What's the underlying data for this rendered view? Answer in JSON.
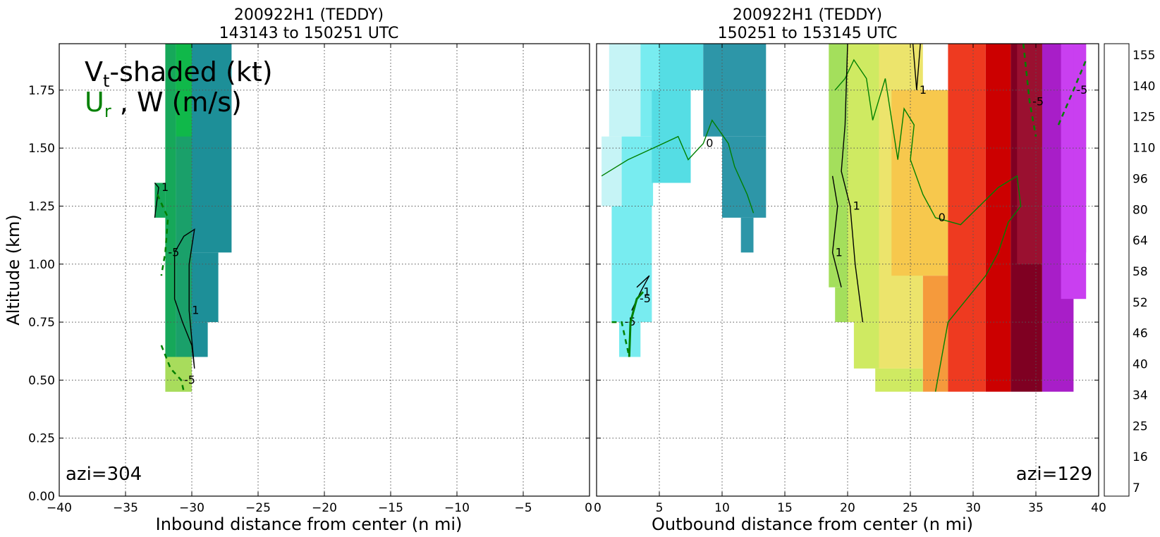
{
  "chart_data": [
    {
      "type": "heatmap",
      "title_line1": "200922H1 (TEDDY)",
      "title_line2": "143143 to 150251 UTC",
      "xlabel": "Inbound distance from center (n mi)",
      "ylabel": "Altitude (km)",
      "xlim": [
        -40,
        0
      ],
      "ylim": [
        0,
        1.95
      ],
      "xticks": [
        "−40",
        "−35",
        "−30",
        "−25",
        "−20",
        "−15",
        "−10",
        "−5",
        "0"
      ],
      "xtick_values": [
        -40,
        -35,
        -30,
        -25,
        -20,
        -15,
        -10,
        -5,
        0
      ],
      "yticks": [
        "0.00",
        "0.25",
        "0.50",
        "0.75",
        "1.00",
        "1.25",
        "1.50",
        "1.75"
      ],
      "ytick_values": [
        0,
        0.25,
        0.5,
        0.75,
        1.0,
        1.25,
        1.5,
        1.75
      ],
      "grid": true,
      "legend_main": "V",
      "legend_main_sub": "t",
      "legend_main_rest": "-shaded (kt)",
      "legend_second": "U",
      "legend_second_sub": "r",
      "legend_second_rest": " , W (m/s)",
      "legend_second_color": "#008000",
      "annotation": "azi=304",
      "shaded_regions": [
        {
          "x": [
            -32.0,
            -31.2
          ],
          "y": [
            0.6,
            1.95
          ],
          "color": "#16a85a"
        },
        {
          "x": [
            -32.8,
            -32.0
          ],
          "y": [
            1.2,
            1.35
          ],
          "color": "#16a85a"
        },
        {
          "x": [
            -31.2,
            -30.0
          ],
          "y": [
            0.6,
            1.95
          ],
          "color": "#1aa06a"
        },
        {
          "x": [
            -30.0,
            -27.0
          ],
          "y": [
            1.05,
            1.95
          ],
          "color": "#1d8f98"
        },
        {
          "x": [
            -30.0,
            -28.0
          ],
          "y": [
            0.75,
            1.05
          ],
          "color": "#1d8f98"
        },
        {
          "x": [
            -30.0,
            -28.8
          ],
          "y": [
            0.6,
            0.75
          ],
          "color": "#1d8f98"
        },
        {
          "x": [
            -31.2,
            -30.0
          ],
          "y": [
            1.55,
            1.95
          ],
          "color": "#10b84a"
        },
        {
          "x": [
            -32.0,
            -30.0
          ],
          "y": [
            0.45,
            0.6
          ],
          "color": "#a8dc5c"
        }
      ],
      "contours": [
        {
          "label": "1",
          "color": "#000000",
          "style": "solid",
          "points": [
            [
              -32.8,
              1.2
            ],
            [
              -32.5,
              1.33
            ],
            [
              -32.8,
              1.35
            ]
          ]
        },
        {
          "label": "1",
          "color": "#000000",
          "style": "solid",
          "points": [
            [
              -31.3,
              1.05
            ],
            [
              -31.3,
              0.85
            ],
            [
              -30.7,
              0.75
            ],
            [
              -30.0,
              0.65
            ],
            [
              -29.8,
              0.55
            ],
            [
              -30.2,
              0.8
            ],
            [
              -30.2,
              1.0
            ],
            [
              -29.8,
              1.15
            ],
            [
              -30.6,
              1.12
            ],
            [
              -31.3,
              1.05
            ]
          ]
        },
        {
          "label": "-5",
          "color": "#008000",
          "style": "dashed",
          "points": [
            [
              -32.6,
              1.3
            ],
            [
              -31.8,
              1.2
            ],
            [
              -32.0,
              1.05
            ],
            [
              -32.3,
              0.95
            ]
          ]
        },
        {
          "label": "-5",
          "color": "#008000",
          "style": "dashed",
          "points": [
            [
              -32.3,
              0.65
            ],
            [
              -31.6,
              0.55
            ],
            [
              -30.8,
              0.5
            ],
            [
              -30.6,
              0.45
            ]
          ]
        }
      ]
    },
    {
      "type": "heatmap",
      "title_line1": "200922H1 (TEDDY)",
      "title_line2": "150251 to 153145 UTC",
      "xlabel": "Outbound distance from center (n mi)",
      "xlim": [
        0,
        40
      ],
      "ylim": [
        0,
        1.95
      ],
      "xticks": [
        "0",
        "5",
        "10",
        "15",
        "20",
        "25",
        "30",
        "35",
        "40"
      ],
      "xtick_values": [
        0,
        5,
        10,
        15,
        20,
        25,
        30,
        35,
        40
      ],
      "grid": true,
      "annotation": "azi=129",
      "shaded_regions": [
        {
          "x": [
            0.4,
            2.0
          ],
          "y": [
            1.25,
            1.55
          ],
          "color": "#c6f4f6"
        },
        {
          "x": [
            1.0,
            3.5
          ],
          "y": [
            1.55,
            1.95
          ],
          "color": "#c6f4f6"
        },
        {
          "x": [
            2.0,
            4.5
          ],
          "y": [
            1.25,
            1.55
          ],
          "color": "#78ecf0"
        },
        {
          "x": [
            3.5,
            5.0
          ],
          "y": [
            1.55,
            1.95
          ],
          "color": "#78ecf0"
        },
        {
          "x": [
            1.2,
            4.4
          ],
          "y": [
            0.75,
            1.25
          ],
          "color": "#78ecf0"
        },
        {
          "x": [
            1.8,
            3.5
          ],
          "y": [
            0.6,
            0.75
          ],
          "color": "#78ecf0"
        },
        {
          "x": [
            4.4,
            7.5
          ],
          "y": [
            1.35,
            1.75
          ],
          "color": "#55dde4"
        },
        {
          "x": [
            5.0,
            8.5
          ],
          "y": [
            1.75,
            1.95
          ],
          "color": "#55dde4"
        },
        {
          "x": [
            8.5,
            13.5
          ],
          "y": [
            1.55,
            1.95
          ],
          "color": "#2d96a8"
        },
        {
          "x": [
            10.0,
            13.5
          ],
          "y": [
            1.2,
            1.55
          ],
          "color": "#2d96a8"
        },
        {
          "x": [
            11.5,
            12.5
          ],
          "y": [
            1.05,
            1.2
          ],
          "color": "#2d96a8"
        },
        {
          "x": [
            18.5,
            20.0
          ],
          "y": [
            0.9,
            1.95
          ],
          "color": "#a4df5c"
        },
        {
          "x": [
            19.0,
            20.0
          ],
          "y": [
            0.75,
            0.9
          ],
          "color": "#a4df5c"
        },
        {
          "x": [
            20.0,
            22.5
          ],
          "y": [
            0.75,
            1.95
          ],
          "color": "#cfea62"
        },
        {
          "x": [
            20.5,
            22.5
          ],
          "y": [
            0.55,
            0.75
          ],
          "color": "#cfea62"
        },
        {
          "x": [
            22.2,
            26.0
          ],
          "y": [
            0.45,
            0.55
          ],
          "color": "#cfea62"
        },
        {
          "x": [
            22.5,
            26.0
          ],
          "y": [
            0.55,
            1.95
          ],
          "color": "#ece46c"
        },
        {
          "x": [
            23.5,
            28.0
          ],
          "y": [
            0.95,
            1.75
          ],
          "color": "#f7c84d"
        },
        {
          "x": [
            26.0,
            28.0
          ],
          "y": [
            0.45,
            0.95
          ],
          "color": "#f59a3c"
        },
        {
          "x": [
            28.0,
            31.0
          ],
          "y": [
            0.45,
            1.95
          ],
          "color": "#ee3a20"
        },
        {
          "x": [
            31.0,
            33.0
          ],
          "y": [
            0.45,
            1.95
          ],
          "color": "#cc0000"
        },
        {
          "x": [
            33.0,
            35.5
          ],
          "y": [
            0.45,
            1.95
          ],
          "color": "#7f0022"
        },
        {
          "x": [
            33.5,
            35.5
          ],
          "y": [
            1.0,
            1.95
          ],
          "color": "#9a1030"
        },
        {
          "x": [
            35.5,
            38.0
          ],
          "y": [
            0.45,
            1.95
          ],
          "color": "#a81ec8"
        },
        {
          "x": [
            37.0,
            39.0
          ],
          "y": [
            0.85,
            1.95
          ],
          "color": "#c93ff0"
        },
        {
          "x": [
            38.0,
            39.0
          ],
          "y": [
            1.05,
            1.95
          ],
          "color": "#c93ff0"
        }
      ],
      "contours": [
        {
          "label": "0",
          "color": "#008000",
          "style": "solid",
          "points": [
            [
              0.4,
              1.38
            ],
            [
              2.5,
              1.45
            ],
            [
              4.5,
              1.5
            ],
            [
              6.5,
              1.55
            ],
            [
              7.3,
              1.45
            ],
            [
              8.5,
              1.52
            ],
            [
              9.2,
              1.62
            ],
            [
              10.5,
              1.52
            ],
            [
              11.0,
              1.42
            ],
            [
              12.0,
              1.3
            ],
            [
              12.5,
              1.22
            ]
          ]
        },
        {
          "label": "0",
          "color": "#008000",
          "style": "solid",
          "points": [
            [
              27.0,
              0.45
            ],
            [
              27.5,
              0.6
            ],
            [
              28.0,
              0.75
            ],
            [
              29.5,
              0.85
            ],
            [
              31.0,
              0.95
            ],
            [
              32.0,
              1.05
            ],
            [
              32.8,
              1.18
            ],
            [
              33.8,
              1.25
            ],
            [
              33.5,
              1.38
            ],
            [
              32.0,
              1.33
            ],
            [
              30.5,
              1.25
            ],
            [
              29.0,
              1.17
            ],
            [
              27.0,
              1.2
            ],
            [
              26.0,
              1.3
            ],
            [
              25.0,
              1.45
            ],
            [
              25.3,
              1.6
            ],
            [
              24.5,
              1.67
            ],
            [
              24.0,
              1.45
            ],
            [
              23.0,
              1.8
            ],
            [
              22.0,
              1.62
            ],
            [
              21.5,
              1.8
            ],
            [
              20.5,
              1.88
            ],
            [
              19.8,
              1.8
            ],
            [
              19.0,
              1.75
            ]
          ]
        },
        {
          "label": "1",
          "color": "#000000",
          "style": "solid",
          "points": [
            [
              18.8,
              1.38
            ],
            [
              19.2,
              1.25
            ],
            [
              18.8,
              1.05
            ],
            [
              19.5,
              0.9
            ]
          ]
        },
        {
          "label": "1",
          "color": "#000000",
          "style": "solid",
          "points": [
            [
              20.0,
              1.95
            ],
            [
              19.8,
              1.6
            ],
            [
              19.5,
              1.4
            ],
            [
              20.2,
              1.25
            ],
            [
              20.6,
              1.0
            ],
            [
              21.2,
              0.75
            ]
          ]
        },
        {
          "label": "1",
          "color": "#000000",
          "style": "solid",
          "points": [
            [
              25.8,
              1.95
            ],
            [
              25.5,
              1.75
            ],
            [
              25.2,
              1.95
            ]
          ]
        },
        {
          "label": "1",
          "color": "#000000",
          "style": "solid",
          "points": [
            [
              3.2,
              0.9
            ],
            [
              4.2,
              0.95
            ],
            [
              3.5,
              0.88
            ],
            [
              2.8,
              0.8
            ]
          ]
        },
        {
          "label": "-5",
          "color": "#008000",
          "style": "dashed",
          "points": [
            [
              34.0,
              1.95
            ],
            [
              34.5,
              1.7
            ],
            [
              35.0,
              1.55
            ]
          ]
        },
        {
          "label": "-5",
          "color": "#008000",
          "style": "dashed",
          "points": [
            [
              36.8,
              1.6
            ],
            [
              38.0,
              1.75
            ],
            [
              39.0,
              1.88
            ]
          ]
        },
        {
          "label": "-5",
          "color": "#008000",
          "style": "dashed",
          "points": [
            [
              1.2,
              0.75
            ],
            [
              2.0,
              0.75
            ],
            [
              2.6,
              0.6
            ]
          ]
        },
        {
          "label": "-5",
          "color": "#008000",
          "style": "solid-thick",
          "points": [
            [
              2.6,
              0.6
            ],
            [
              2.7,
              0.75
            ],
            [
              3.2,
              0.85
            ],
            [
              3.7,
              0.88
            ]
          ]
        }
      ]
    }
  ],
  "colorbar": {
    "tick_labels": [
      "155",
      "140",
      "125",
      "110",
      "96",
      "80",
      "64",
      "58",
      "52",
      "46",
      "40",
      "34",
      "25",
      "16",
      "7"
    ],
    "colors": [
      "#ffffff",
      "#c8f6f8",
      "#a0f0f4",
      "#78ecf0",
      "#55dde4",
      "#40c4d0",
      "#38a8b8",
      "#2d96a8",
      "#208c98",
      "#16a070",
      "#10b84a",
      "#3cc848",
      "#7ed650",
      "#a4df5c",
      "#cfea62",
      "#ece46c",
      "#f7d050",
      "#f7c84d",
      "#f59a3c",
      "#f56a30",
      "#ee3a20",
      "#dd0000",
      "#c00000",
      "#990000",
      "#7f0022",
      "#a010a0",
      "#c030e0",
      "#c950f0",
      "#e090f0",
      "#e8a0f0",
      "#f0c0f0",
      "#f7c8e8",
      "#f8a8c8",
      "#f898b0",
      "#f78898",
      "#f07080",
      "#e85868",
      "#e04050",
      "#c82848",
      "#b01c40",
      "#9a1030"
    ]
  }
}
